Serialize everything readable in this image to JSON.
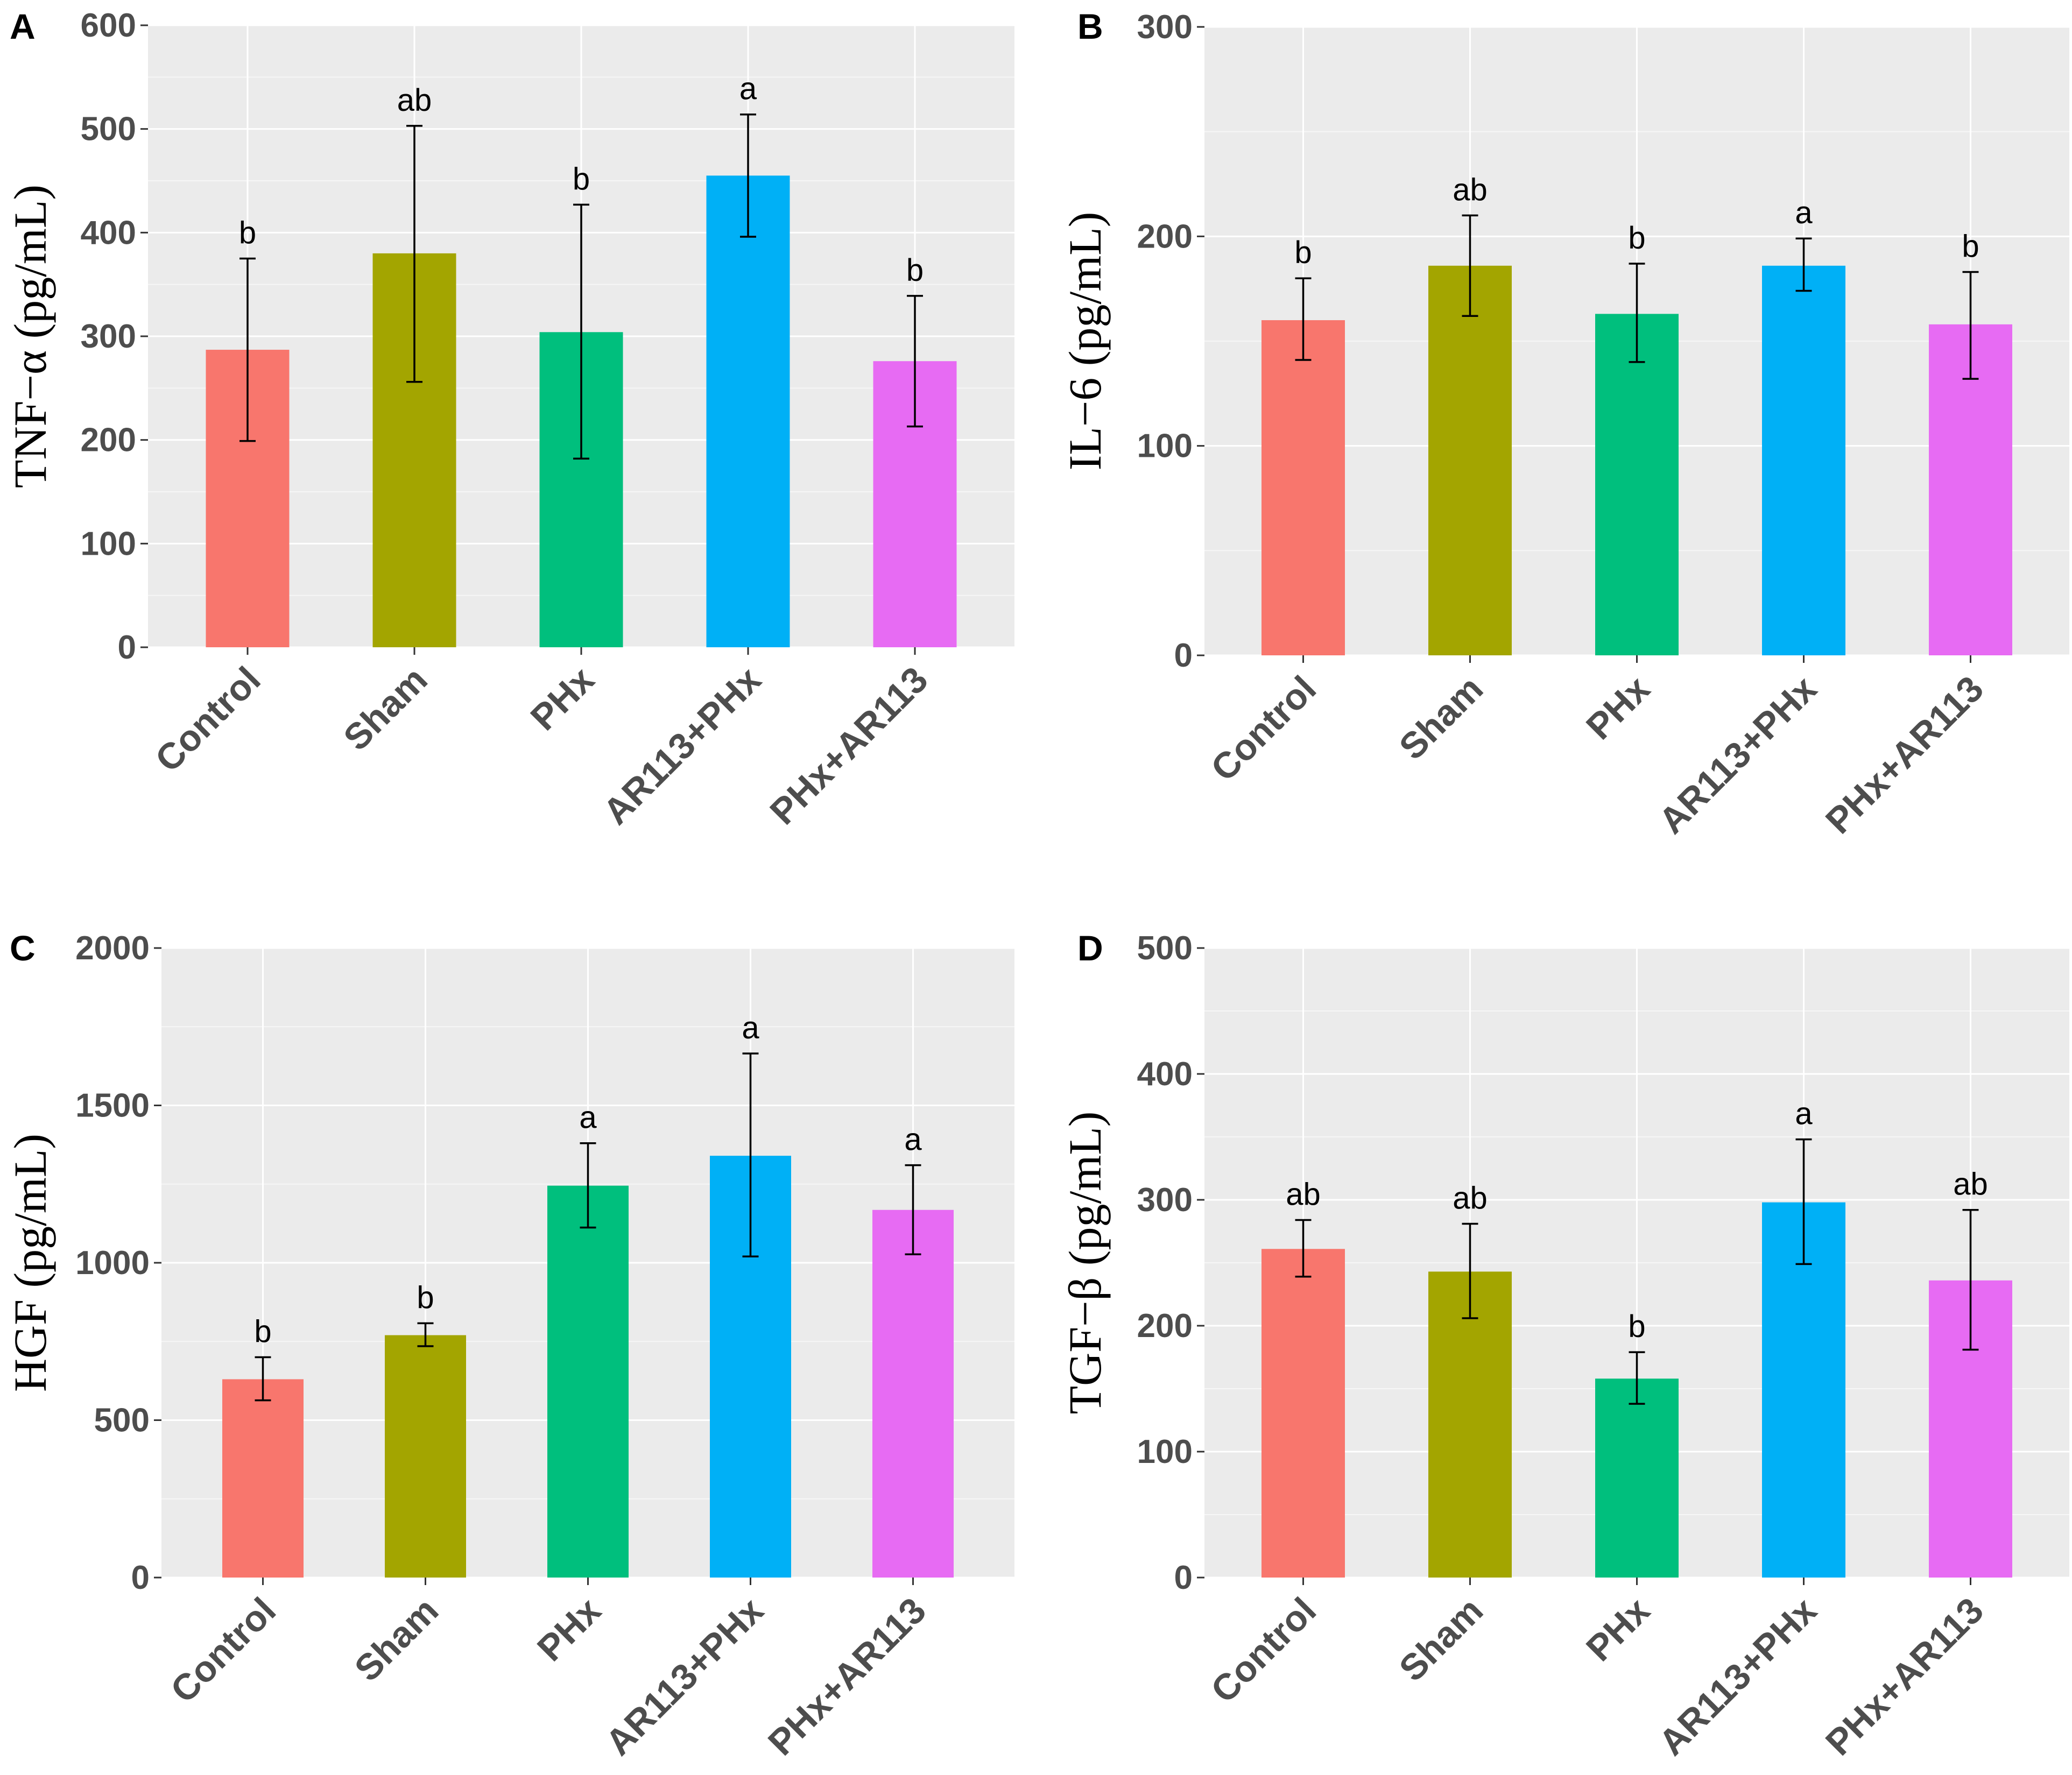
{
  "figure": {
    "background": "#ffffff"
  },
  "chart_data": [
    {
      "panel": "A",
      "type": "bar",
      "ylabel": "TNF−α (pg/mL)",
      "ylim": [
        0,
        600
      ],
      "yticks": [
        0,
        100,
        200,
        300,
        400,
        500,
        600
      ],
      "categories": [
        "Control",
        "Sham",
        "PHx",
        "AR113+PHx",
        "PHx+AR113"
      ],
      "colors": [
        "#f8766d",
        "#a3a500",
        "#00bf7d",
        "#00b0f6",
        "#e76bf3"
      ],
      "values": [
        287,
        380,
        304,
        455,
        276
      ],
      "err_low": [
        199,
        256,
        182,
        396,
        213
      ],
      "err_high": [
        375,
        503,
        427,
        514,
        339
      ],
      "letters": [
        "b",
        "ab",
        "b",
        "a",
        "b"
      ]
    },
    {
      "panel": "B",
      "type": "bar",
      "ylabel": "IL−6 (pg/mL)",
      "ylim": [
        0,
        300
      ],
      "yticks": [
        0,
        100,
        200,
        300
      ],
      "categories": [
        "Control",
        "Sham",
        "PHx",
        "AR113+PHx",
        "PHx+AR113"
      ],
      "colors": [
        "#f8766d",
        "#a3a500",
        "#00bf7d",
        "#00b0f6",
        "#e76bf3"
      ],
      "values": [
        160,
        186,
        163,
        186,
        158
      ],
      "err_low": [
        141,
        162,
        140,
        174,
        132
      ],
      "err_high": [
        180,
        210,
        187,
        199,
        183
      ],
      "letters": [
        "b",
        "ab",
        "b",
        "a",
        "b"
      ]
    },
    {
      "panel": "C",
      "type": "bar",
      "ylabel": "HGF (pg/mL)",
      "ylim": [
        0,
        2000
      ],
      "yticks": [
        0,
        500,
        1000,
        1500,
        2000
      ],
      "categories": [
        "Control",
        "Sham",
        "PHx",
        "AR113+PHx",
        "PHx+AR113"
      ],
      "colors": [
        "#f8766d",
        "#a3a500",
        "#00bf7d",
        "#00b0f6",
        "#e76bf3"
      ],
      "values": [
        630,
        770,
        1245,
        1340,
        1168
      ],
      "err_low": [
        563,
        735,
        1112,
        1020,
        1027
      ],
      "err_high": [
        700,
        808,
        1380,
        1665,
        1310
      ],
      "letters": [
        "b",
        "b",
        "a",
        "a",
        "a"
      ]
    },
    {
      "panel": "D",
      "type": "bar",
      "ylabel": "TGF−β (pg/mL)",
      "ylim": [
        0,
        500
      ],
      "yticks": [
        0,
        100,
        200,
        300,
        400,
        500
      ],
      "categories": [
        "Control",
        "Sham",
        "PHx",
        "AR113+PHx",
        "PHx+AR113"
      ],
      "colors": [
        "#f8766d",
        "#a3a500",
        "#00bf7d",
        "#00b0f6",
        "#e76bf3"
      ],
      "values": [
        261,
        243,
        158,
        298,
        236
      ],
      "err_low": [
        239,
        206,
        138,
        249,
        181
      ],
      "err_high": [
        284,
        281,
        179,
        348,
        292
      ],
      "letters": [
        "ab",
        "ab",
        "b",
        "a",
        "ab"
      ]
    }
  ]
}
